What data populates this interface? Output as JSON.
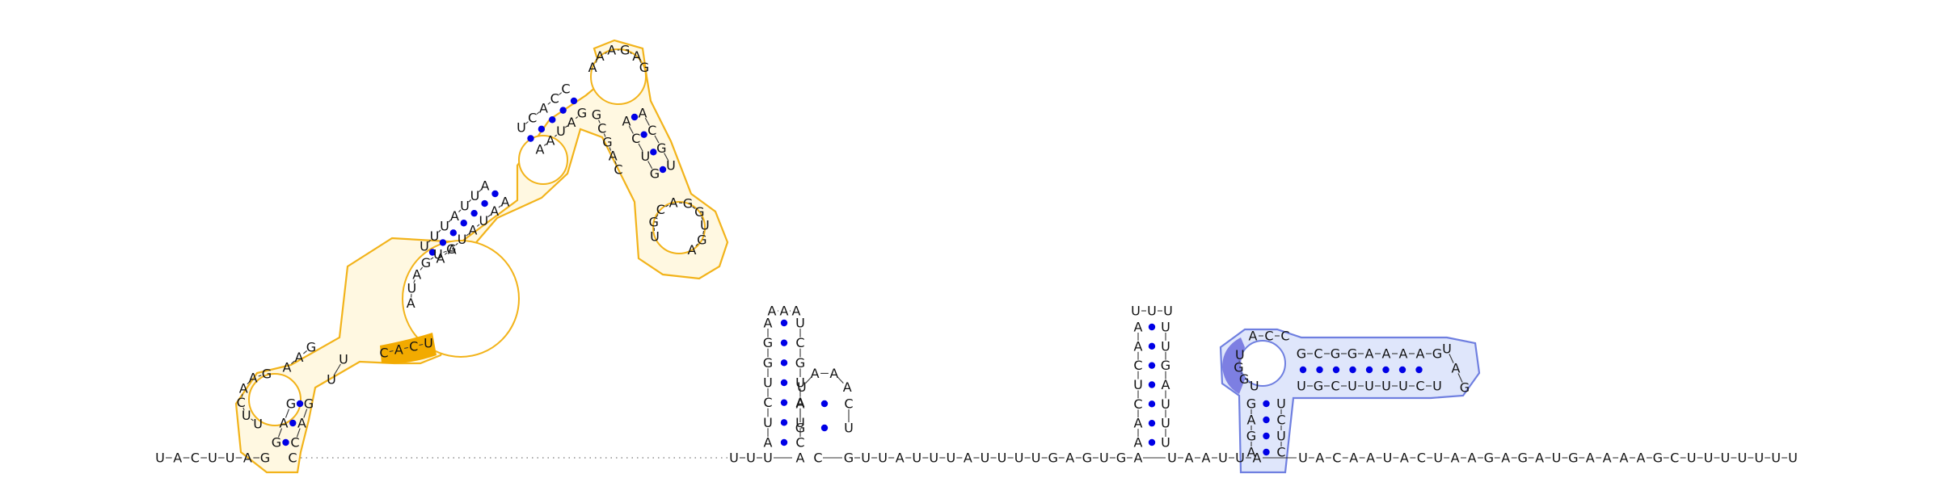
{
  "colors": {
    "orange_outline": "#f2b31a",
    "orange_fill": "#fff3c8",
    "orange_highlight": "#f2aa00",
    "blue_outline": "#6f7fe0",
    "blue_fill": "#dfe6fb",
    "blue_highlight": "#7d7fe2",
    "pair_dot": "#0000e6",
    "base_text": "#111111"
  },
  "backbone": {
    "left_seq": "UACUUAG",
    "pair_seq": "C",
    "gap_note": "",
    "mid_seq_1": "UUU",
    "mid_seq_2": "A",
    "mid_seq_3": "C",
    "mid_seq_4": "GUUAUUUAUUUUGAGUGA",
    "mid_seq_5": "UAAUUA",
    "right_seq": "UACAAUACUAAGAGAUGAAAAGCUUUUUUU"
  },
  "domains": {
    "orange": {
      "helix1_5p": "GAG",
      "helix1_3p": "GAC",
      "loop1": "UUCAAG",
      "inner_seq_left": "AAG",
      "inner_seq_right": "UU",
      "multiloop_left": "AUAGUA",
      "highlight_seq": "CACU",
      "helix2_5p": "UUUAUUA",
      "helix2_3p": "AAUAUGA",
      "helix3_5p": "UCACC",
      "helix3_3p": "GAUAA",
      "apical_loop": "AAAGAG",
      "branch_5p": "ACUG",
      "branch_3p": "UGCA",
      "branch_loop": "UGCAGGUGA",
      "extra_strand": "GCGAC"
    },
    "blue": {
      "top_5p": "GCGGAAAAG",
      "top_3p": "UGCUUUUCU",
      "loop_left": "UGGU",
      "loop_top": "ACC",
      "tip": "UAG",
      "stem_5p": "GAGA",
      "stem_3p": "CUCU"
    }
  },
  "small_hairpins": {
    "hairpin_a": {
      "stem_5p": "AUCUGGA",
      "stem_3p": "UCGUAUC",
      "loop": "AAA"
    },
    "hairpin_b": {
      "stem_5p": "GA",
      "stem_3p": "CU",
      "loop": "UAAA"
    },
    "hairpin_c": {
      "stem_5p": "AACUCAA",
      "stem_3p": "UUGAUUU",
      "loop": "UUU"
    }
  }
}
